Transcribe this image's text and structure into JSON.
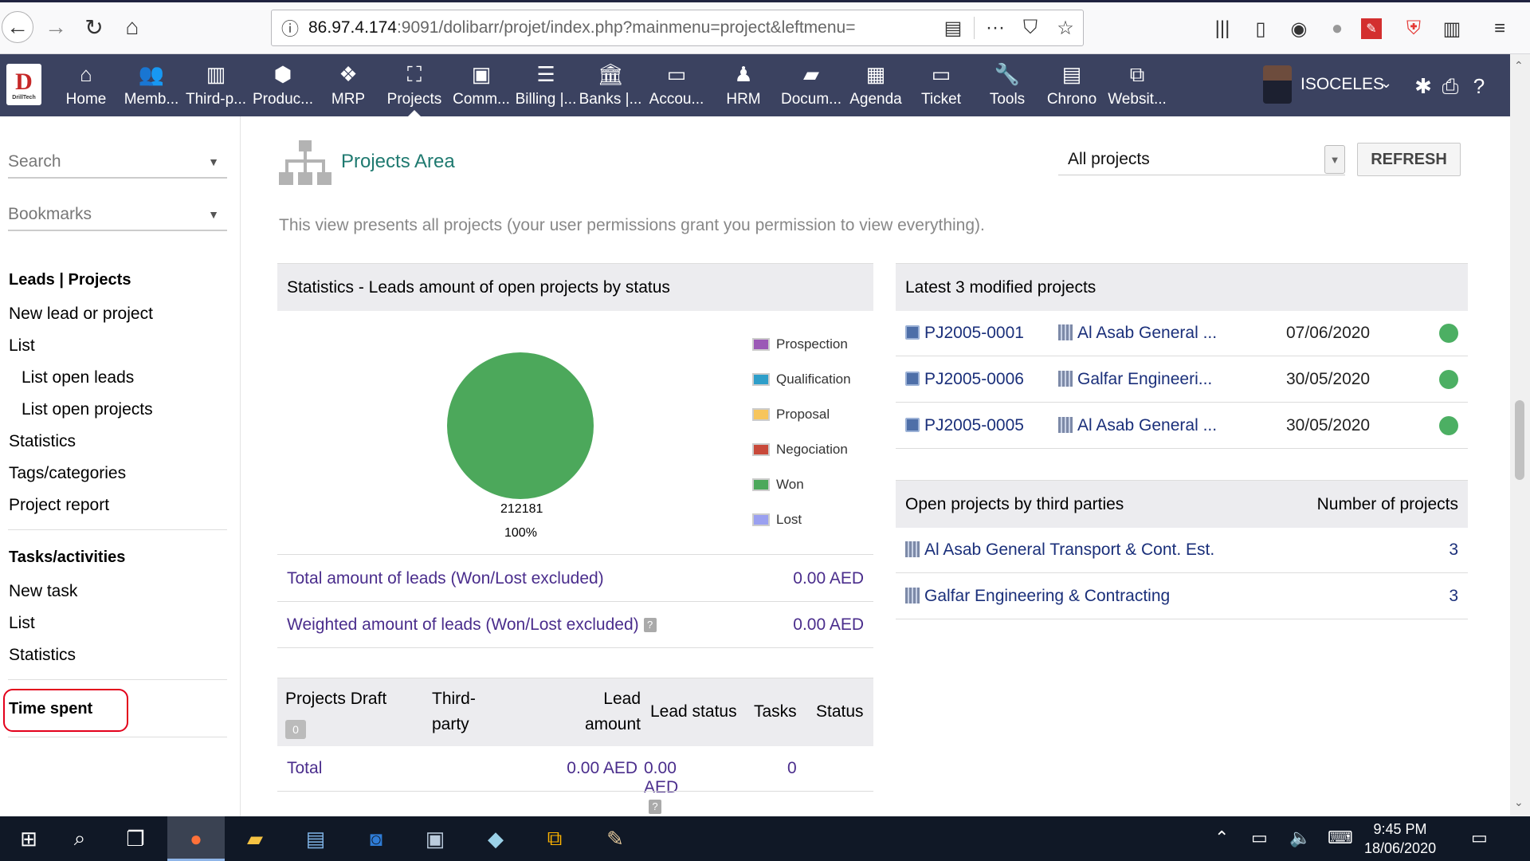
{
  "browser": {
    "url_main": "86.97.4.174",
    "url_rest": ":9091/dolibarr/projet/index.php?mainmenu=project&leftmenu="
  },
  "topmenu": {
    "items": [
      {
        "label": "Home",
        "icon": "home-icon"
      },
      {
        "label": "Memb...",
        "icon": "users-icon"
      },
      {
        "label": "Third-p...",
        "icon": "building-icon"
      },
      {
        "label": "Produc...",
        "icon": "cube-icon"
      },
      {
        "label": "MRP",
        "icon": "cubes-icon"
      },
      {
        "label": "Projects",
        "icon": "sitemap-icon"
      },
      {
        "label": "Comm...",
        "icon": "briefcase-icon"
      },
      {
        "label": "Billing |...",
        "icon": "coins-icon"
      },
      {
        "label": "Banks |...",
        "icon": "bank-icon"
      },
      {
        "label": "Accou...",
        "icon": "money-check-icon"
      },
      {
        "label": "HRM",
        "icon": "user-tie-icon"
      },
      {
        "label": "Docum...",
        "icon": "folder-icon"
      },
      {
        "label": "Agenda",
        "icon": "calendar-icon"
      },
      {
        "label": "Ticket",
        "icon": "ticket-icon"
      },
      {
        "label": "Tools",
        "icon": "wrench-icon"
      },
      {
        "label": "Chrono",
        "icon": "chrono-icon"
      },
      {
        "label": "Websit...",
        "icon": "website-icon"
      }
    ],
    "logo_text": "D",
    "logo_sub": "DrillTech",
    "user_name": "ISOCELES"
  },
  "sidebar": {
    "search_placeholder": "Search",
    "bookmarks_label": "Bookmarks",
    "section1_title": "Leads | Projects",
    "section1_links": [
      "New lead or project",
      "List",
      "List open leads",
      "List open projects",
      "Statistics",
      "Tags/categories",
      "Project report"
    ],
    "section2_title": "Tasks/activities",
    "section2_links": [
      "New task",
      "List",
      "Statistics"
    ],
    "section3_title": "Time spent"
  },
  "main": {
    "title": "Projects Area",
    "filter_value": "All projects",
    "refresh_label": "REFRESH",
    "intro": "This view presents all projects (your user permissions grant you permission to view everything)."
  },
  "stats": {
    "title": "Statistics - Leads amount of open projects by status",
    "pie_value": "212181",
    "pie_percent": "100%",
    "legend": [
      {
        "label": "Prospection",
        "color": "#9b59b6"
      },
      {
        "label": "Qualification",
        "color": "#2e9ec9"
      },
      {
        "label": "Proposal",
        "color": "#f7c55c"
      },
      {
        "label": "Negociation",
        "color": "#c8493a"
      },
      {
        "label": "Won",
        "color": "#4ca85b"
      },
      {
        "label": "Lost",
        "color": "#9aa0f0"
      }
    ],
    "total_label": "Total amount of leads (Won/Lost excluded)",
    "total_value": "0.00 AED",
    "weighted_label": "Weighted amount of leads (Won/Lost excluded)",
    "weighted_value": "0.00 AED"
  },
  "chart_data": {
    "type": "pie",
    "categories": [
      "Won"
    ],
    "values": [
      212181
    ],
    "labels": [
      "212181",
      "100%"
    ],
    "legend": [
      "Prospection",
      "Qualification",
      "Proposal",
      "Negociation",
      "Won",
      "Lost"
    ],
    "title": "Statistics - Leads amount of open projects by status"
  },
  "draft": {
    "col_projects": "Projects Draft",
    "badge": "0",
    "col_third_1": "Third-",
    "col_third_2": "party",
    "col_lead_1": "Lead",
    "col_lead_2": "amount",
    "col_lead_status": "Lead status",
    "col_tasks": "Tasks",
    "col_status": "Status",
    "total_label": "Total",
    "total_amount": "0.00 AED",
    "total_status": "0.00 AED",
    "total_tasks": "0"
  },
  "latest": {
    "title": "Latest 3 modified projects",
    "rows": [
      {
        "ref": "PJ2005-0001",
        "thirdparty": "Al Asab General ...",
        "date": "07/06/2020"
      },
      {
        "ref": "PJ2005-0006",
        "thirdparty": "Galfar Engineeri...",
        "date": "30/05/2020"
      },
      {
        "ref": "PJ2005-0005",
        "thirdparty": "Al Asab General ...",
        "date": "30/05/2020"
      }
    ]
  },
  "thirdparties": {
    "title": "Open projects by third parties",
    "col_count": "Number of projects",
    "rows": [
      {
        "name": "Al Asab General Transport & Cont. Est.",
        "count": "3"
      },
      {
        "name": "Galfar Engineering & Contracting",
        "count": "3"
      }
    ]
  },
  "taskbar": {
    "time": "9:45 PM",
    "date": "18/06/2020"
  }
}
